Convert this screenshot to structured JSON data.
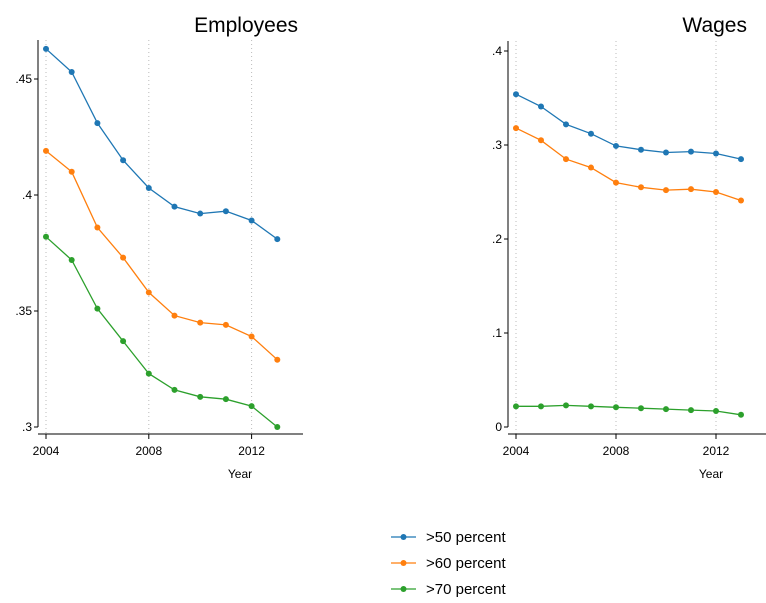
{
  "colors": {
    "s50": "#1f77b4",
    "s60": "#ff7f0e",
    "s70": "#2ca02c"
  },
  "legend": [
    {
      "label": ">50 percent",
      "color": "#1f77b4"
    },
    {
      "label": ">60 percent",
      "color": "#ff7f0e"
    },
    {
      "label": ">70 percent",
      "color": "#2ca02c"
    }
  ],
  "chart_data": [
    {
      "type": "line",
      "title": "Employees",
      "xlabel": "",
      "ylabel": "",
      "x": [
        2004,
        2005,
        2006,
        2007,
        2008,
        2009,
        2010,
        2011,
        2012,
        2013
      ],
      "xlim": [
        2004,
        2014
      ],
      "ylim": [
        0.3,
        0.475
      ],
      "xticks": [
        2004,
        2008,
        2012
      ],
      "xtick_labels": [
        "2004",
        "2008",
        "2012"
      ],
      "yticks": [
        0.3,
        0.35,
        0.4,
        0.45
      ],
      "ytick_labels": [
        ".3",
        ".35",
        ".4",
        ".45"
      ],
      "grid": "vertical dotted at x ticks",
      "series": [
        {
          "name": ">50 percent",
          "color": "#1f77b4",
          "values": [
            0.463,
            0.453,
            0.431,
            0.415,
            0.403,
            0.395,
            0.392,
            0.393,
            0.389,
            0.381
          ]
        },
        {
          "name": ">60 percent",
          "color": "#ff7f0e",
          "values": [
            0.419,
            0.41,
            0.386,
            0.373,
            0.358,
            0.348,
            0.345,
            0.344,
            0.339,
            0.329
          ]
        },
        {
          "name": ">70 percent",
          "color": "#2ca02c",
          "values": [
            0.382,
            0.372,
            0.351,
            0.337,
            0.323,
            0.316,
            0.313,
            0.312,
            0.309,
            0.3
          ]
        }
      ]
    },
    {
      "type": "line",
      "title": "Wages",
      "xlabel": "Year",
      "ylabel": "",
      "x": [
        2004,
        2005,
        2006,
        2007,
        2008,
        2009,
        2010,
        2011,
        2012,
        2013
      ],
      "xlim": [
        2004,
        2014
      ],
      "ylim": [
        0,
        0.4
      ],
      "xticks": [
        2004,
        2008,
        2012
      ],
      "xtick_labels": [
        "2004",
        "2008",
        "2012"
      ],
      "yticks": [
        0,
        0.1,
        0.2,
        0.3,
        0.4
      ],
      "ytick_labels": [
        "0",
        ".1",
        ".2",
        ".3",
        ".4"
      ],
      "grid": "vertical dotted at x ticks",
      "series": [
        {
          "name": ">50 percent",
          "color": "#1f77b4",
          "values": [
            0.354,
            0.341,
            0.322,
            0.312,
            0.299,
            0.295,
            0.292,
            0.293,
            0.291,
            0.285
          ]
        },
        {
          "name": ">60 percent",
          "color": "#ff7f0e",
          "values": [
            0.318,
            0.305,
            0.285,
            0.276,
            0.26,
            0.255,
            0.252,
            0.253,
            0.25,
            0.241
          ]
        },
        {
          "name": ">70 percent",
          "color": "#2ca02c",
          "values": [
            0.022,
            0.022,
            0.023,
            0.022,
            0.021,
            0.02,
            0.019,
            0.018,
            0.017,
            0.013
          ]
        }
      ]
    }
  ],
  "shared_xlabel": "Year"
}
